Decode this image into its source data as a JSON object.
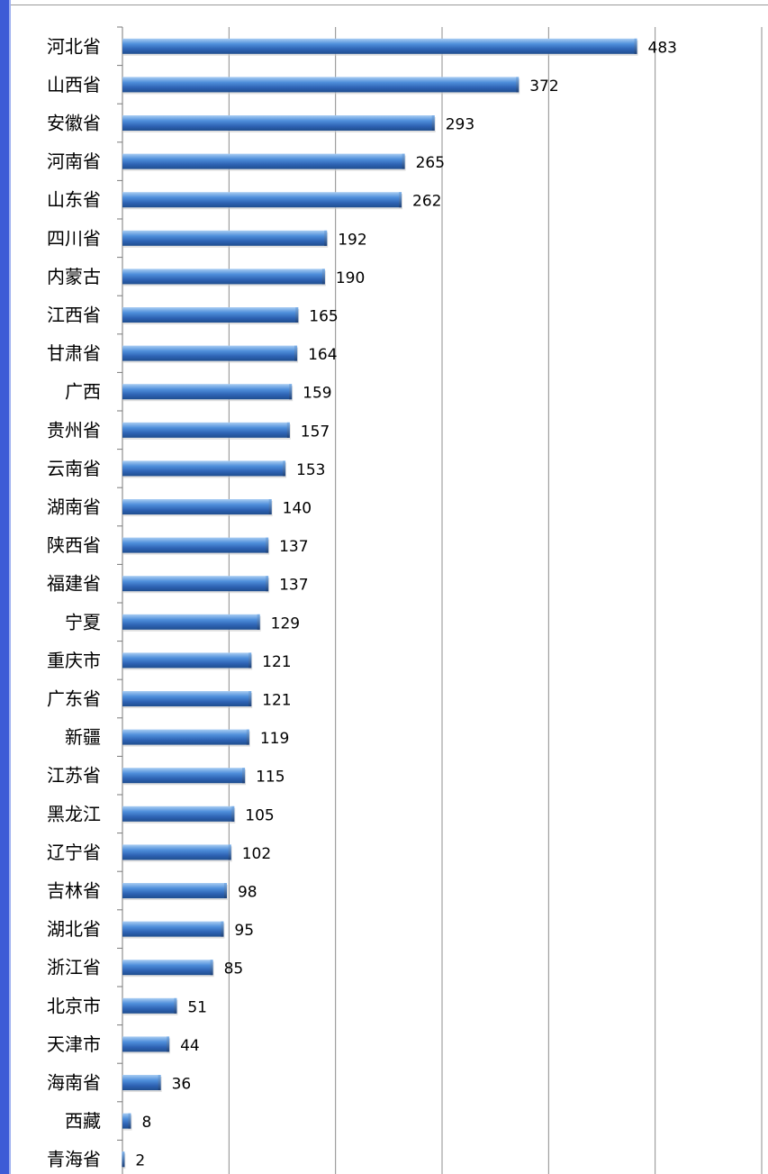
{
  "chart_data": {
    "type": "bar",
    "orientation": "horizontal",
    "title": "",
    "xlabel": "",
    "ylabel": "",
    "categories": [
      "河北省",
      "山西省",
      "安徽省",
      "河南省",
      "山东省",
      "四川省",
      "内蒙古",
      "江西省",
      "甘肃省",
      "广西",
      "贵州省",
      "云南省",
      "湖南省",
      "陕西省",
      "福建省",
      "宁夏",
      "重庆市",
      "广东省",
      "新疆",
      "江苏省",
      "黑龙江",
      "辽宁省",
      "吉林省",
      "湖北省",
      "浙江省",
      "北京市",
      "天津市",
      "海南省",
      "西藏",
      "青海省"
    ],
    "values": [
      483,
      372,
      293,
      265,
      262,
      192,
      190,
      165,
      164,
      159,
      157,
      153,
      140,
      137,
      137,
      129,
      121,
      121,
      119,
      115,
      105,
      102,
      98,
      95,
      85,
      51,
      44,
      36,
      8,
      2
    ],
    "xlim": [
      0,
      600
    ],
    "grid": true,
    "legend": "none",
    "bar_color": "#3f7fd0",
    "bar_dark": "#1f4e8f",
    "bar_light": "#a9cdf3",
    "accent_border": "#3d5bd6"
  }
}
